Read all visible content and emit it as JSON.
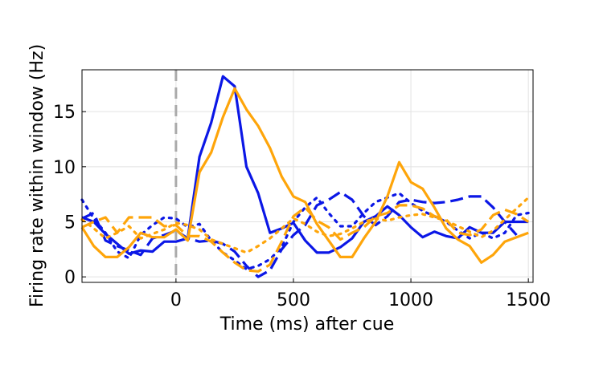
{
  "chart_data": {
    "type": "line",
    "title": "",
    "xlabel": "Time (ms) after cue",
    "ylabel": "Firing rate within window (Hz)",
    "xlim": [
      -400,
      1520
    ],
    "ylim": [
      -0.5,
      18.8
    ],
    "xticks": [
      0,
      500,
      1000,
      1500
    ],
    "yticks": [
      0,
      5,
      10,
      15
    ],
    "xtick_labels": [
      "0",
      "500",
      "1000",
      "1500"
    ],
    "ytick_labels": [
      "0",
      "5",
      "10",
      "15"
    ],
    "grid": true,
    "legend": "none",
    "cue_marker": {
      "x": 0,
      "color": "#aaaaaa",
      "style": "dashed"
    },
    "series": [
      {
        "color": "#0b17e6",
        "style": "solid",
        "x": [
          -400,
          -350,
          -300,
          -250,
          -200,
          -150,
          -100,
          -50,
          0,
          50,
          100,
          150,
          200,
          250,
          300,
          350,
          400,
          450,
          500,
          550,
          600,
          650,
          700,
          750,
          800,
          850,
          900,
          950,
          1000,
          1050,
          1100,
          1150,
          1200,
          1250,
          1300,
          1350,
          1400,
          1450,
          1500
        ],
        "y": [
          5.4,
          5.0,
          3.9,
          3.0,
          2.1,
          2.4,
          2.3,
          3.2,
          3.2,
          3.5,
          10.9,
          14.0,
          18.2,
          17.3,
          10.0,
          7.6,
          4.0,
          4.4,
          4.9,
          3.3,
          2.2,
          2.2,
          2.7,
          3.5,
          5.0,
          5.5,
          6.4,
          5.6,
          4.5,
          3.6,
          4.1,
          3.7,
          3.5,
          4.5,
          4.0,
          4.0,
          5.0,
          5.0,
          5.0
        ]
      },
      {
        "color": "#0b17e6",
        "style": "dashed",
        "x": [
          -400,
          -350,
          -300,
          -250,
          -200,
          -150,
          -100,
          -50,
          0,
          50,
          100,
          150,
          200,
          250,
          300,
          350,
          400,
          450,
          500,
          550,
          600,
          650,
          700,
          750,
          800,
          850,
          900,
          950,
          1000,
          1050,
          1100,
          1150,
          1200,
          1250,
          1300,
          1350,
          1400,
          1450
        ],
        "y": [
          5.3,
          5.8,
          3.3,
          2.8,
          2.4,
          2.0,
          3.5,
          3.8,
          4.2,
          3.5,
          3.2,
          3.3,
          3.0,
          2.3,
          1.0,
          0.0,
          0.6,
          2.5,
          3.8,
          4.7,
          6.5,
          7.0,
          7.7,
          7.0,
          5.5,
          4.7,
          5.5,
          6.8,
          7.0,
          6.8,
          6.7,
          6.8,
          7.0,
          7.3,
          7.3,
          6.3,
          5.0,
          3.8
        ]
      },
      {
        "color": "#0b17e6",
        "style": "dotted",
        "x": [
          -400,
          -350,
          -300,
          -250,
          -200,
          -150,
          -100,
          -50,
          0,
          50,
          100,
          150,
          200,
          250,
          300,
          350,
          400,
          450,
          500,
          550,
          600,
          650,
          700,
          750,
          800,
          850,
          900,
          950,
          1000,
          1050,
          1100,
          1150,
          1200,
          1250,
          1300,
          1350,
          1400,
          1450,
          1500
        ],
        "y": [
          7.0,
          5.3,
          4.0,
          2.3,
          1.7,
          3.8,
          4.7,
          5.4,
          5.3,
          4.5,
          4.8,
          3.3,
          2.2,
          1.5,
          0.7,
          1.0,
          1.6,
          2.7,
          5.0,
          6.3,
          7.2,
          5.8,
          4.6,
          4.6,
          5.8,
          6.8,
          7.2,
          7.6,
          6.7,
          6.0,
          5.5,
          5.0,
          4.2,
          3.5,
          4.0,
          3.5,
          4.0,
          5.6,
          5.8
        ]
      },
      {
        "color": "#fea50a",
        "style": "solid",
        "x": [
          -400,
          -350,
          -300,
          -250,
          -200,
          -150,
          -100,
          -50,
          0,
          50,
          100,
          150,
          200,
          250,
          300,
          350,
          400,
          450,
          500,
          550,
          600,
          650,
          700,
          750,
          800,
          850,
          900,
          950,
          1000,
          1050,
          1100,
          1150,
          1200,
          1250,
          1300,
          1350,
          1400,
          1450,
          1500
        ],
        "y": [
          4.5,
          2.8,
          1.8,
          1.8,
          2.7,
          4.0,
          3.6,
          3.6,
          4.3,
          3.3,
          9.5,
          11.3,
          14.5,
          17.1,
          15.2,
          13.7,
          11.7,
          9.1,
          7.3,
          6.8,
          4.8,
          3.3,
          1.8,
          1.8,
          3.5,
          5.0,
          7.3,
          10.4,
          8.6,
          8.0,
          6.3,
          4.4,
          3.4,
          2.8,
          1.3,
          2.0,
          3.2,
          3.6,
          4.0
        ]
      },
      {
        "color": "#fea50a",
        "style": "dashed",
        "x": [
          -400,
          -350,
          -300,
          -250,
          -200,
          -150,
          -100,
          -50,
          0,
          50,
          100,
          150,
          200,
          250,
          300,
          350,
          400,
          450,
          500,
          550,
          600,
          650,
          700,
          750,
          800,
          850,
          900,
          950,
          1000,
          1050,
          1100,
          1150,
          1200,
          1250,
          1300,
          1350,
          1400,
          1450,
          1500
        ],
        "y": [
          4.5,
          5.0,
          5.4,
          4.0,
          5.4,
          5.4,
          5.4,
          4.6,
          4.7,
          3.7,
          3.7,
          3.2,
          2.2,
          1.3,
          0.6,
          0.5,
          1.1,
          3.2,
          5.5,
          6.3,
          5.1,
          4.5,
          3.4,
          4.0,
          4.5,
          5.5,
          5.8,
          6.5,
          6.5,
          6.2,
          5.5,
          5.2,
          4.0,
          3.8,
          4.3,
          5.6,
          6.1,
          5.7,
          5.0
        ]
      },
      {
        "color": "#fea50a",
        "style": "dotted",
        "x": [
          -400,
          -350,
          -300,
          -250,
          -200,
          -150,
          -100,
          -50,
          0,
          50,
          100,
          150,
          200,
          250,
          300,
          350,
          400,
          450,
          500,
          550,
          600,
          650,
          700,
          750,
          800,
          850,
          900,
          950,
          1000,
          1050,
          1100,
          1150,
          1200,
          1250,
          1300,
          1350,
          1400,
          1450,
          1500
        ],
        "y": [
          5.2,
          4.4,
          3.5,
          4.0,
          4.6,
          3.5,
          3.9,
          4.3,
          4.9,
          4.7,
          4.3,
          3.4,
          3.0,
          2.6,
          2.2,
          2.8,
          3.5,
          4.4,
          5.3,
          4.8,
          4.1,
          3.7,
          3.9,
          4.4,
          5.0,
          5.3,
          5.1,
          5.4,
          5.6,
          5.7,
          5.4,
          5.1,
          4.6,
          4.1,
          3.6,
          4.2,
          5.2,
          6.2,
          7.2
        ]
      }
    ]
  }
}
